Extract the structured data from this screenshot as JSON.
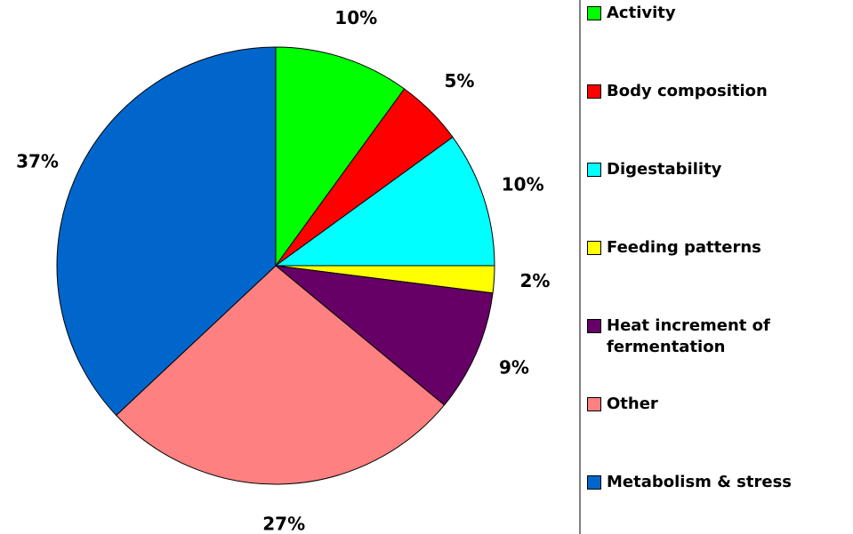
{
  "chart_data": {
    "type": "pie",
    "categories": [
      "Activity",
      "Body composition",
      "Digestability",
      "Feeding patterns",
      "Heat increment of fermentation",
      "Other",
      "Metabolism & stress"
    ],
    "values": [
      10,
      5,
      10,
      2,
      9,
      27,
      37
    ],
    "value_labels": [
      "10%",
      "5%",
      "10%",
      "2%",
      "9%",
      "27%",
      "37%"
    ],
    "colors": [
      "#00ff00",
      "#ff0000",
      "#00ffff",
      "#ffff00",
      "#660066",
      "#ff8080",
      "#0066cc"
    ]
  }
}
